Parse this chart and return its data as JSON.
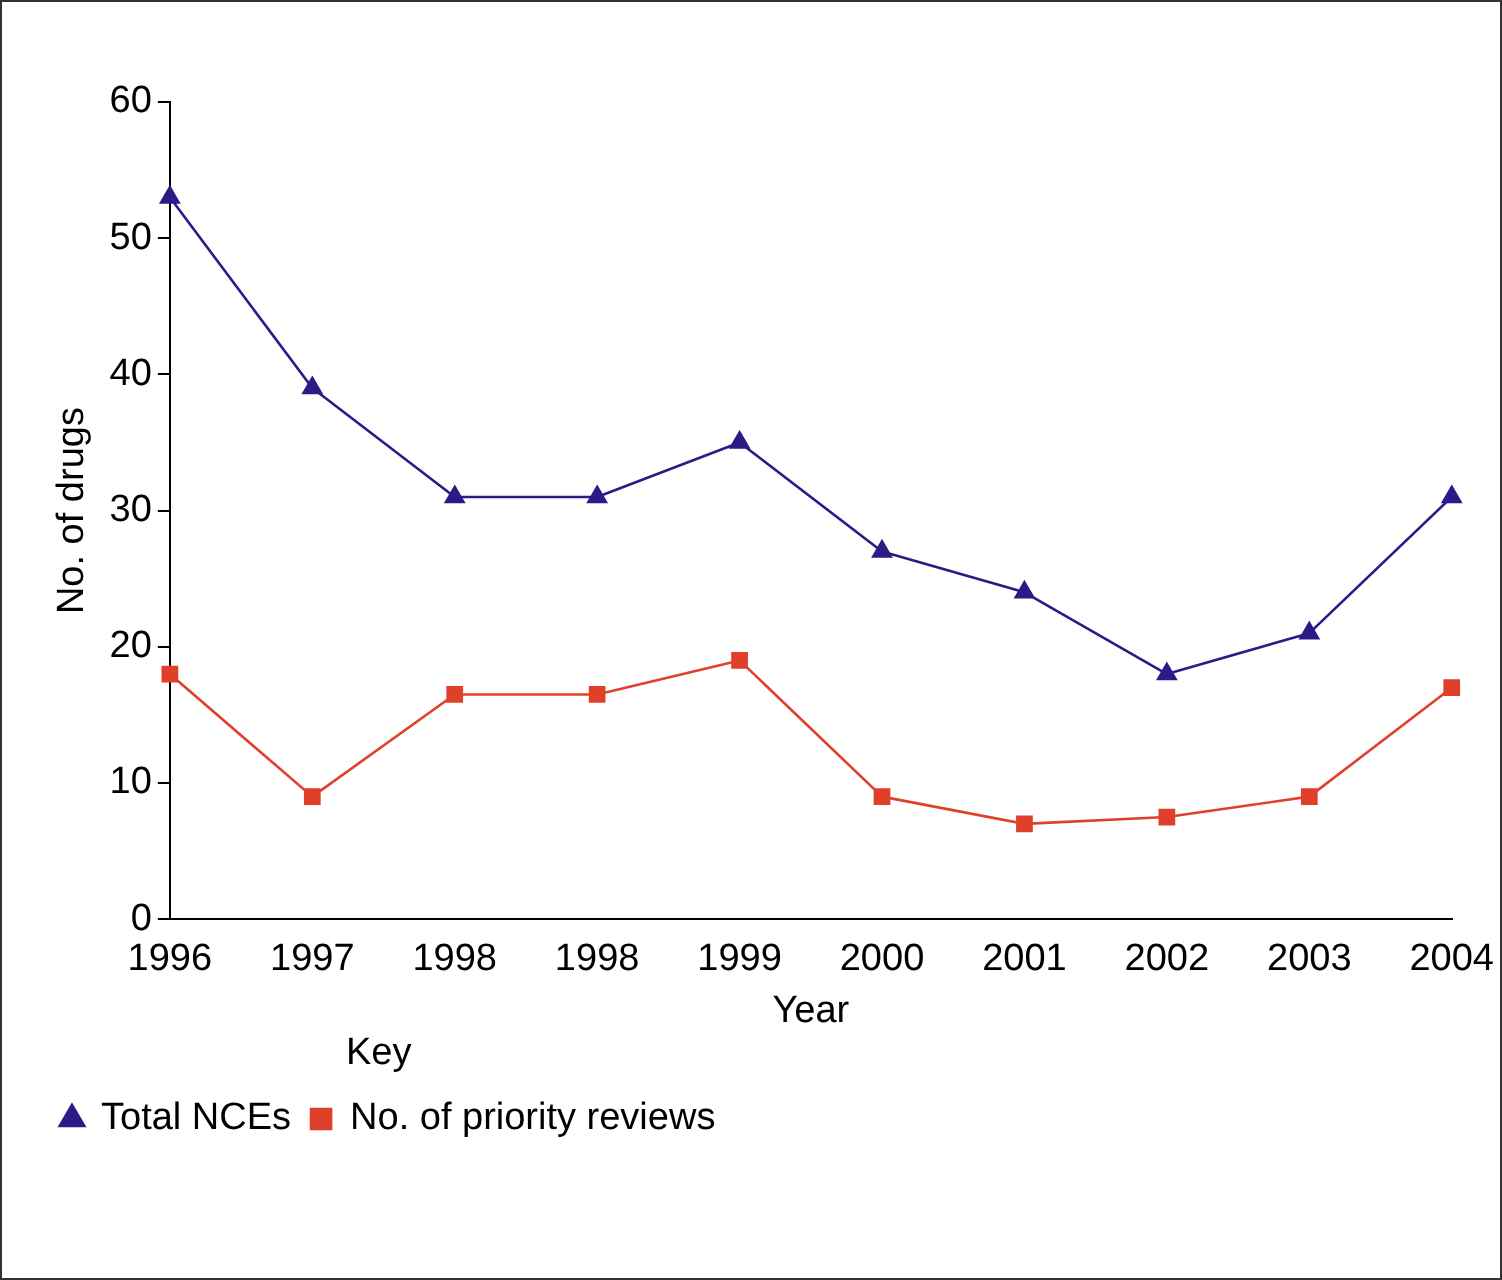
{
  "chart_data": {
    "type": "line",
    "xlabel": "Year",
    "ylabel": "No. of drugs",
    "categories": [
      "1996",
      "1997",
      "1998",
      "1998",
      "1999",
      "2000",
      "2001",
      "2002",
      "2003",
      "2004"
    ],
    "series": [
      {
        "name": "Total NCEs",
        "color": "#2e1a87",
        "marker": "triangle",
        "values": [
          53,
          39,
          31,
          31,
          35,
          27,
          24,
          18,
          21,
          31
        ]
      },
      {
        "name": "No. of priority reviews",
        "color": "#e0402a",
        "marker": "square",
        "values": [
          18,
          9,
          16.5,
          16.5,
          19,
          9,
          7,
          7.5,
          9,
          17
        ]
      }
    ],
    "ylim": [
      0,
      60
    ],
    "yticks": [
      0,
      10,
      20,
      30,
      40,
      50,
      60
    ],
    "grid": false,
    "legend": "bottom left",
    "legend_title": "Key",
    "line_style": "solid"
  }
}
